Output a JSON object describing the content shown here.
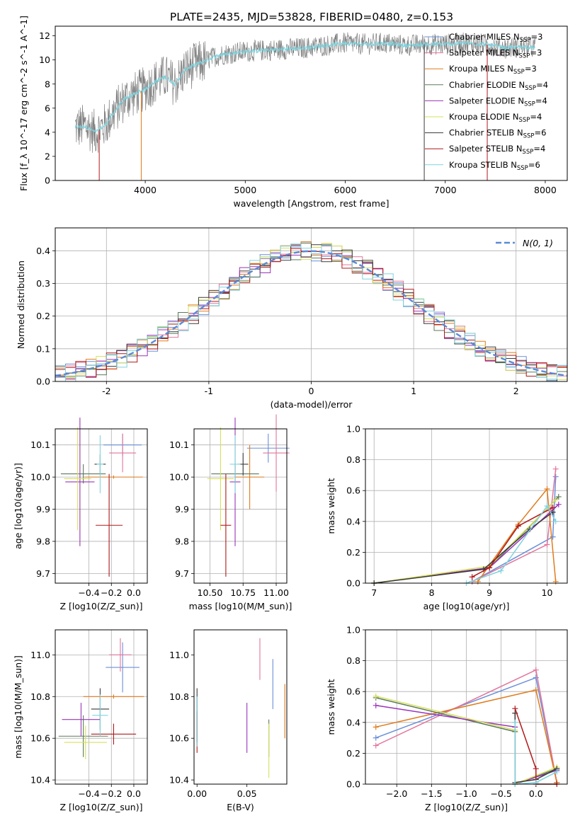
{
  "figure": {
    "title": "PLATE=2435, MJD=53828, FIBERID=0480, z=0.153"
  },
  "models": [
    {
      "name": "Chabrier MILES",
      "nssp": "3",
      "color": "#6a8fd8"
    },
    {
      "name": "Salpeter MILES",
      "nssp": "3",
      "color": "#e2759b"
    },
    {
      "name": "Kroupa MILES",
      "nssp": "3",
      "color": "#e07b1c"
    },
    {
      "name": "Chabrier ELODIE",
      "nssp": "4",
      "color": "#5c7a5c"
    },
    {
      "name": "Salpeter ELODIE",
      "nssp": "4",
      "color": "#9a35b8"
    },
    {
      "name": "Kroupa ELODIE",
      "nssp": "4",
      "color": "#d6e05a"
    },
    {
      "name": "Chabrier STELIB",
      "nssp": "6",
      "color": "#3a3a3a"
    },
    {
      "name": "Salpeter STELIB",
      "nssp": "4",
      "color": "#b0191a"
    },
    {
      "name": "Kroupa STELIB",
      "nssp": "6",
      "color": "#7fd3de"
    }
  ],
  "chart_data": [
    {
      "id": "spectrum",
      "type": "line",
      "xlabel": "wavelength [Angstrom, rest frame]",
      "ylabel": "Flux [f_λ 10^-17 erg cm^-2 s^-1 A^-1]",
      "xlim": [
        3100,
        8220
      ],
      "ylim": [
        0,
        12.8
      ],
      "xticks": [
        4000,
        5000,
        6000,
        7000,
        8000
      ],
      "yticks": [
        0,
        2,
        4,
        6,
        8,
        10,
        12
      ],
      "grid": false,
      "legend": "top-right",
      "data_color": "#808080",
      "data_x": [
        3300,
        3400,
        3500,
        3600,
        3700,
        3800,
        3900,
        4000,
        4100,
        4200,
        4300,
        4400,
        4500,
        4600,
        4700,
        4800,
        4900,
        5000,
        5200,
        5400,
        5600,
        5800,
        6000,
        6200,
        6400,
        6600,
        6800,
        7000,
        7200,
        7400,
        7600,
        7800,
        7900
      ],
      "data_y": [
        4.4,
        4.5,
        4.0,
        4.6,
        5.8,
        6.8,
        7.2,
        7.6,
        8.2,
        8.6,
        8.0,
        9.2,
        9.6,
        9.9,
        10.3,
        10.5,
        10.6,
        10.7,
        10.8,
        10.9,
        11.0,
        11.2,
        11.4,
        11.3,
        11.4,
        11.2,
        11.3,
        11.3,
        11.4,
        11.3,
        11.0,
        11.1,
        11.0
      ],
      "model_color": "#7fd3de"
    },
    {
      "id": "residuals",
      "type": "histogram",
      "xlabel": "(data-model)/error",
      "ylabel": "Normed distribution",
      "xlim": [
        -2.5,
        2.5
      ],
      "ylim": [
        0,
        0.47
      ],
      "xticks": [
        -2,
        -1,
        0,
        1,
        2
      ],
      "yticks": [
        0.0,
        0.1,
        0.2,
        0.3,
        0.4
      ],
      "grid": true,
      "legend": "top-right",
      "legend_label": "N(0, 1)",
      "gauss_color": "#5b8ad6",
      "bin_width": 0.1
    },
    {
      "id": "age-vs-Z",
      "type": "errorbar",
      "xlabel": "Z [log10(Z/Z_sun)]",
      "ylabel": "age [log10(age/yr)]",
      "xlim": [
        -0.7,
        0.12
      ],
      "ylim": [
        9.67,
        10.15
      ],
      "xticks": [
        -0.4,
        -0.2,
        0.0
      ],
      "xtick_labels": [
        "−0.4",
        "−0.2",
        "0.0"
      ],
      "yticks": [
        9.7,
        9.8,
        9.9,
        10.0,
        10.1
      ],
      "grid": true,
      "points": [
        {
          "m": 0,
          "x": -0.1,
          "xe": 0.17,
          "y": 10.1,
          "ye": 0.035
        },
        {
          "m": 1,
          "x": -0.1,
          "xe": 0.12,
          "y": 10.075,
          "ye": 0.06
        },
        {
          "m": 2,
          "x": -0.18,
          "xe": 0.26,
          "y": 10.0,
          "ye": 0.005
        },
        {
          "m": 3,
          "x": -0.45,
          "xe": 0.2,
          "y": 10.01,
          "ye": 0.03
        },
        {
          "m": 4,
          "x": -0.48,
          "xe": 0.13,
          "y": 9.985,
          "ye": 0.2
        },
        {
          "m": 5,
          "x": -0.5,
          "xe": 0.12,
          "y": 9.995,
          "ye": 0.16
        },
        {
          "m": 6,
          "x": -0.3,
          "xe": 0.05,
          "y": 10.04,
          "ye": 0.03
        },
        {
          "m": 7,
          "x": -0.22,
          "xe": 0.12,
          "y": 9.85,
          "ye": 0.16
        },
        {
          "m": 8,
          "x": -0.3,
          "xe": 0.03,
          "y": 10.04,
          "ye": 0.09
        }
      ]
    },
    {
      "id": "age-vs-mass",
      "type": "errorbar",
      "xlabel": "mass [log10(M/M_sun)]",
      "ylabel": "",
      "xlim": [
        10.38,
        11.08
      ],
      "ylim": [
        9.67,
        10.15
      ],
      "xticks": [
        10.5,
        10.75,
        11.0
      ],
      "xtick_labels": [
        "10.50",
        "10.75",
        "11.00"
      ],
      "yticks": [
        9.7,
        9.8,
        9.9,
        10.0,
        10.1
      ],
      "grid": true,
      "points": [
        {
          "m": 0,
          "x": 10.94,
          "xe": 0.16,
          "y": 10.09,
          "ye": 0.045
        },
        {
          "m": 1,
          "x": 11.0,
          "xe": 0.1,
          "y": 10.075,
          "ye": 0.12
        },
        {
          "m": 2,
          "x": 10.8,
          "xe": 0.11,
          "y": 10.0,
          "ye": 0.1
        },
        {
          "m": 3,
          "x": 10.69,
          "xe": 0.18,
          "y": 10.01,
          "ye": 0.03
        },
        {
          "m": 4,
          "x": 10.69,
          "xe": 0.04,
          "y": 9.985,
          "ye": 0.2
        },
        {
          "m": 5,
          "x": 10.58,
          "xe": 0.1,
          "y": 9.995,
          "ye": 0.16
        },
        {
          "m": 6,
          "x": 10.75,
          "xe": 0.04,
          "y": 10.04,
          "ye": 0.035
        },
        {
          "m": 7,
          "x": 10.62,
          "xe": 0.04,
          "y": 9.85,
          "ye": 0.16
        },
        {
          "m": 8,
          "x": 10.69,
          "xe": 0.04,
          "y": 10.04,
          "ye": 0.09
        }
      ]
    },
    {
      "id": "weight-vs-age",
      "type": "line",
      "xlabel": "age [log10(age/yr)]",
      "ylabel": "mass weight",
      "xlim": [
        6.85,
        10.35
      ],
      "ylim": [
        0,
        1.0
      ],
      "xticks": [
        7,
        8,
        9,
        10
      ],
      "xtick_labels": [
        "7",
        "8",
        "9",
        "10"
      ],
      "yticks": [
        0.0,
        0.2,
        0.4,
        0.6,
        0.8,
        1.0
      ],
      "grid": true,
      "series": [
        {
          "m": 0,
          "x": [
            8.7,
            10.1,
            10.15
          ],
          "y": [
            0.01,
            0.3,
            0.69
          ]
        },
        {
          "m": 1,
          "x": [
            8.7,
            10.0,
            10.15
          ],
          "y": [
            0.01,
            0.25,
            0.74
          ]
        },
        {
          "m": 2,
          "x": [
            8.8,
            9.5,
            10.0,
            10.15
          ],
          "y": [
            0.01,
            0.38,
            0.61,
            0.01
          ]
        },
        {
          "m": 3,
          "x": [
            7.0,
            9.0,
            10.2
          ],
          "y": [
            0.0,
            0.1,
            0.56
          ]
        },
        {
          "m": 4,
          "x": [
            7.0,
            9.0,
            10.2
          ],
          "y": [
            0.0,
            0.1,
            0.51
          ]
        },
        {
          "m": 5,
          "x": [
            7.0,
            9.0,
            10.15
          ],
          "y": [
            0.0,
            0.11,
            0.54
          ]
        },
        {
          "m": 6,
          "x": [
            7.0,
            8.9,
            9.7,
            10.1
          ],
          "y": [
            0.0,
            0.09,
            0.35,
            0.46
          ]
        },
        {
          "m": 7,
          "x": [
            8.7,
            9.0,
            9.5,
            10.1
          ],
          "y": [
            0.04,
            0.1,
            0.37,
            0.49
          ]
        },
        {
          "m": 8,
          "x": [
            8.6,
            9.2,
            10.0,
            10.15
          ],
          "y": [
            0.0,
            0.08,
            0.5,
            0.4
          ]
        }
      ]
    },
    {
      "id": "mass-vs-Z",
      "type": "errorbar",
      "xlabel": "Z [log10(Z/Z_sun)]",
      "ylabel": "mass [log10(M/M_sun)]",
      "xlim": [
        -0.7,
        0.12
      ],
      "ylim": [
        10.38,
        11.12
      ],
      "xticks": [
        -0.4,
        -0.2,
        0.0
      ],
      "xtick_labels": [
        "−0.4",
        "−0.2",
        "0.0"
      ],
      "yticks": [
        10.4,
        10.6,
        10.8,
        11.0
      ],
      "grid": true,
      "points": [
        {
          "m": 0,
          "x": -0.1,
          "xe": 0.15,
          "y": 10.94,
          "ye": 0.12
        },
        {
          "m": 1,
          "x": -0.12,
          "xe": 0.1,
          "y": 11.0,
          "ye": 0.08
        },
        {
          "m": 2,
          "x": -0.18,
          "xe": 0.27,
          "y": 10.8,
          "ye": 0.01
        },
        {
          "m": 3,
          "x": -0.45,
          "xe": 0.22,
          "y": 10.61,
          "ye": 0.1
        },
        {
          "m": 4,
          "x": -0.47,
          "xe": 0.17,
          "y": 10.69,
          "ye": 0.08
        },
        {
          "m": 5,
          "x": -0.43,
          "xe": 0.19,
          "y": 10.58,
          "ye": 0.08
        },
        {
          "m": 6,
          "x": -0.3,
          "xe": 0.08,
          "y": 10.74,
          "ye": 0.1
        },
        {
          "m": 7,
          "x": -0.18,
          "xe": 0.2,
          "y": 10.62,
          "ye": 0.05
        },
        {
          "m": 8,
          "x": -0.3,
          "xe": 0.07,
          "y": 10.71,
          "ye": 0.1
        }
      ]
    },
    {
      "id": "mass-vs-ebv",
      "type": "errorbar",
      "xlabel": "E(B-V)",
      "ylabel": "",
      "xlim": [
        -0.003,
        0.09
      ],
      "ylim": [
        10.38,
        11.12
      ],
      "xticks": [
        0.0,
        0.05
      ],
      "xtick_labels": [
        "0.00",
        "0.05"
      ],
      "yticks": [
        10.4,
        10.6,
        10.8,
        11.0
      ],
      "grid": false,
      "points": [
        {
          "m": 0,
          "x": 0.076,
          "xe": 0,
          "y": 10.86,
          "ye": 0.12
        },
        {
          "m": 1,
          "x": 0.063,
          "xe": 0,
          "y": 10.98,
          "ye": 0.1
        },
        {
          "m": 2,
          "x": 0.088,
          "xe": 0,
          "y": 10.73,
          "ye": 0.13
        },
        {
          "m": 3,
          "x": 0.072,
          "xe": 0,
          "y": 10.6,
          "ye": 0.09
        },
        {
          "m": 4,
          "x": 0.05,
          "xe": 0,
          "y": 10.65,
          "ye": 0.12
        },
        {
          "m": 5,
          "x": 0.072,
          "xe": 0,
          "y": 10.54,
          "ye": 0.13
        },
        {
          "m": 6,
          "x": 0.0,
          "xe": 0,
          "y": 10.71,
          "ye": 0.13
        },
        {
          "m": 7,
          "x": 0.0,
          "xe": 0,
          "y": 10.63,
          "ye": 0.1
        },
        {
          "m": 8,
          "x": 0.0,
          "xe": 0,
          "y": 10.68,
          "ye": 0.12
        }
      ]
    },
    {
      "id": "weight-vs-Z",
      "type": "line",
      "xlabel": "Z [log10(Z/Z_sun)]",
      "ylabel": "mass weight",
      "xlim": [
        -2.45,
        0.45
      ],
      "ylim": [
        0,
        1.0
      ],
      "xticks": [
        -2.0,
        -1.5,
        -1.0,
        -0.5,
        0.0
      ],
      "xtick_labels": [
        "−2.0",
        "−1.5",
        "−1.0",
        "−0.5",
        "0.0"
      ],
      "yticks": [
        0.0,
        0.2,
        0.4,
        0.6,
        0.8,
        1.0
      ],
      "grid": true,
      "series": [
        {
          "m": 0,
          "x": [
            -2.3,
            0.0,
            0.3
          ],
          "y": [
            0.3,
            0.69,
            0.01
          ]
        },
        {
          "m": 1,
          "x": [
            -2.3,
            0.0,
            0.3
          ],
          "y": [
            0.25,
            0.74,
            0.01
          ]
        },
        {
          "m": 2,
          "x": [
            -2.3,
            0.0,
            0.3
          ],
          "y": [
            0.37,
            0.61,
            0.01
          ]
        },
        {
          "m": 3,
          "x": [
            -2.3,
            -0.3,
            -0.3,
            0.3
          ],
          "y": [
            0.56,
            0.34,
            0.0,
            0.1
          ]
        },
        {
          "m": 4,
          "x": [
            -2.3,
            -0.3,
            -0.3,
            0.3
          ],
          "y": [
            0.51,
            0.37,
            0.0,
            0.09
          ]
        },
        {
          "m": 5,
          "x": [
            -2.3,
            -0.3,
            -0.3,
            0.3
          ],
          "y": [
            0.57,
            0.35,
            0.0,
            0.11
          ]
        },
        {
          "m": 6,
          "x": [
            -0.3,
            -0.3,
            0.0,
            0.3
          ],
          "y": [
            0.46,
            0.01,
            0.03,
            0.1
          ]
        },
        {
          "m": 7,
          "x": [
            -0.3,
            0.0,
            0.0,
            0.3
          ],
          "y": [
            0.49,
            0.1,
            0.0,
            0.0
          ]
        },
        {
          "m": 8,
          "x": [
            -0.3,
            -0.3,
            0.0,
            0.3
          ],
          "y": [
            0.4,
            0.0,
            0.01,
            0.08
          ]
        }
      ]
    }
  ]
}
